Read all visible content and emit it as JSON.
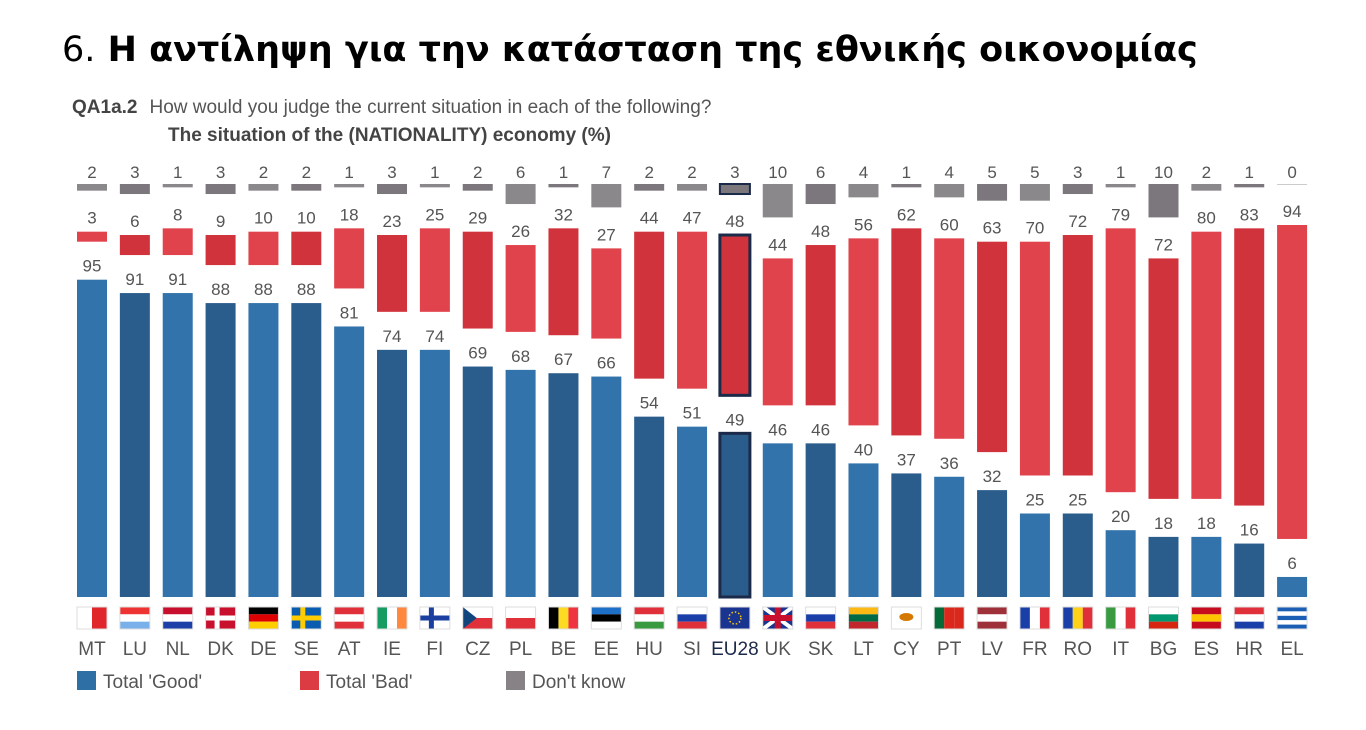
{
  "title_number": "6.",
  "title": "Η αντίληψη για την κατάσταση της εθνικής οικονομίας",
  "question_code": "QA1a.2",
  "question": "How would you judge the current situation in each of the following?",
  "subquestion": "The situation of the (NATIONALITY) economy (%)",
  "chart_data": {
    "type": "bar",
    "stacking": "separate panels per series",
    "categories": [
      "MT",
      "LU",
      "NL",
      "DK",
      "DE",
      "SE",
      "AT",
      "IE",
      "FI",
      "CZ",
      "PL",
      "BE",
      "EE",
      "HU",
      "SI",
      "EU28",
      "UK",
      "SK",
      "LT",
      "CY",
      "PT",
      "LV",
      "FR",
      "RO",
      "IT",
      "BG",
      "ES",
      "HR",
      "EL"
    ],
    "highlight": "EU28",
    "series": [
      {
        "name": "Total 'Good'",
        "color": "#2e6fa6",
        "values": [
          95,
          91,
          91,
          88,
          88,
          88,
          81,
          74,
          74,
          69,
          68,
          67,
          66,
          54,
          51,
          49,
          46,
          46,
          40,
          37,
          36,
          32,
          25,
          25,
          20,
          18,
          18,
          16,
          6
        ]
      },
      {
        "name": "Total 'Bad'",
        "color": "#dc3b44",
        "values": [
          3,
          6,
          8,
          9,
          10,
          10,
          18,
          23,
          25,
          29,
          26,
          32,
          27,
          44,
          47,
          48,
          44,
          48,
          56,
          62,
          60,
          63,
          70,
          72,
          79,
          72,
          80,
          83,
          94
        ]
      },
      {
        "name": "Don't know",
        "color": "#868286",
        "values": [
          2,
          3,
          1,
          3,
          2,
          2,
          1,
          3,
          1,
          2,
          6,
          1,
          7,
          2,
          2,
          3,
          10,
          6,
          4,
          1,
          4,
          5,
          5,
          3,
          1,
          10,
          2,
          1,
          0
        ]
      }
    ],
    "legend_position": "bottom-left",
    "grid": false
  }
}
